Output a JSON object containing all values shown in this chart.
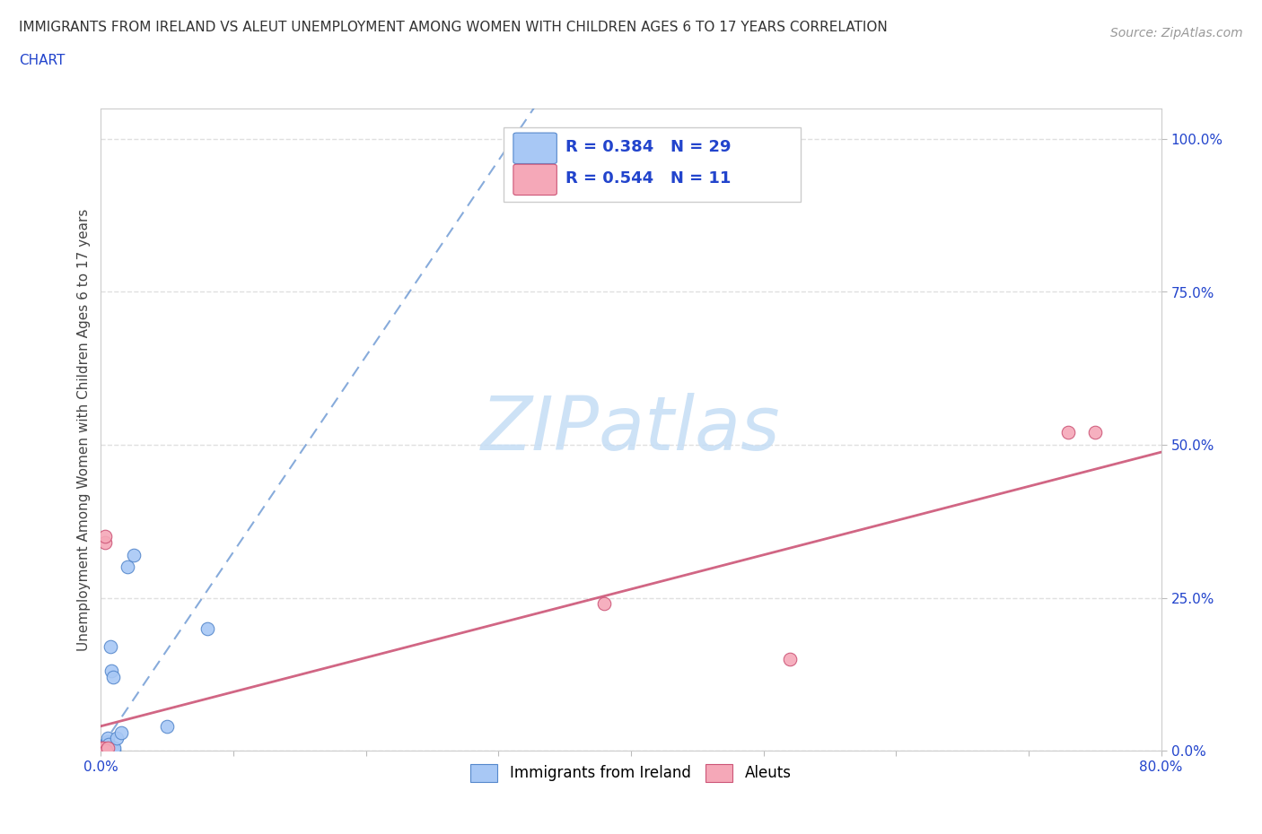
{
  "title_line1": "IMMIGRANTS FROM IRELAND VS ALEUT UNEMPLOYMENT AMONG WOMEN WITH CHILDREN AGES 6 TO 17 YEARS CORRELATION",
  "title_line2": "CHART",
  "source": "Source: ZipAtlas.com",
  "ylabel": "Unemployment Among Women with Children Ages 6 to 17 years",
  "xlim": [
    0.0,
    0.8
  ],
  "ylim": [
    0.0,
    1.05
  ],
  "ytick_positions": [
    0.0,
    0.25,
    0.5,
    0.75,
    1.0
  ],
  "ytick_labels": [
    "0.0%",
    "25.0%",
    "50.0%",
    "75.0%",
    "100.0%"
  ],
  "xtick_positions": [
    0.0,
    0.1,
    0.2,
    0.3,
    0.4,
    0.5,
    0.6,
    0.7,
    0.8
  ],
  "xtick_labels": [
    "0.0%",
    "",
    "",
    "",
    "",
    "",
    "",
    "",
    "80.0%"
  ],
  "ireland_color": "#a8c8f5",
  "ireland_edge": "#5588cc",
  "aleut_color": "#f5a8b8",
  "aleut_edge": "#cc5577",
  "ireland_R": 0.384,
  "ireland_N": 29,
  "aleut_R": 0.544,
  "aleut_N": 11,
  "legend_R_color": "#2244cc",
  "ireland_scatter_x": [
    0.0,
    0.001,
    0.001,
    0.002,
    0.002,
    0.003,
    0.003,
    0.003,
    0.004,
    0.004,
    0.005,
    0.005,
    0.005,
    0.005,
    0.005,
    0.006,
    0.006,
    0.006,
    0.007,
    0.008,
    0.009,
    0.01,
    0.01,
    0.012,
    0.015,
    0.02,
    0.025,
    0.05,
    0.08
  ],
  "ireland_scatter_y": [
    0.0,
    0.0,
    0.005,
    0.0,
    0.005,
    0.0,
    0.005,
    0.01,
    0.005,
    0.01,
    0.0,
    0.005,
    0.01,
    0.015,
    0.02,
    0.0,
    0.005,
    0.01,
    0.17,
    0.13,
    0.12,
    0.0,
    0.005,
    0.02,
    0.03,
    0.3,
    0.32,
    0.04,
    0.2
  ],
  "aleut_scatter_x": [
    0.0,
    0.001,
    0.002,
    0.003,
    0.003,
    0.004,
    0.005,
    0.38,
    0.52,
    0.73,
    0.75
  ],
  "aleut_scatter_y": [
    0.005,
    0.0,
    0.005,
    0.34,
    0.35,
    0.0,
    0.005,
    0.24,
    0.15,
    0.52,
    0.52
  ],
  "ireland_trend_intercept": 0.005,
  "ireland_trend_slope": 3.2,
  "aleut_trend_intercept": 0.04,
  "aleut_trend_slope": 0.56,
  "watermark_color": "#c5ddf5",
  "background_color": "#ffffff",
  "grid_color": "#e0e0e0",
  "grid_style": "--"
}
